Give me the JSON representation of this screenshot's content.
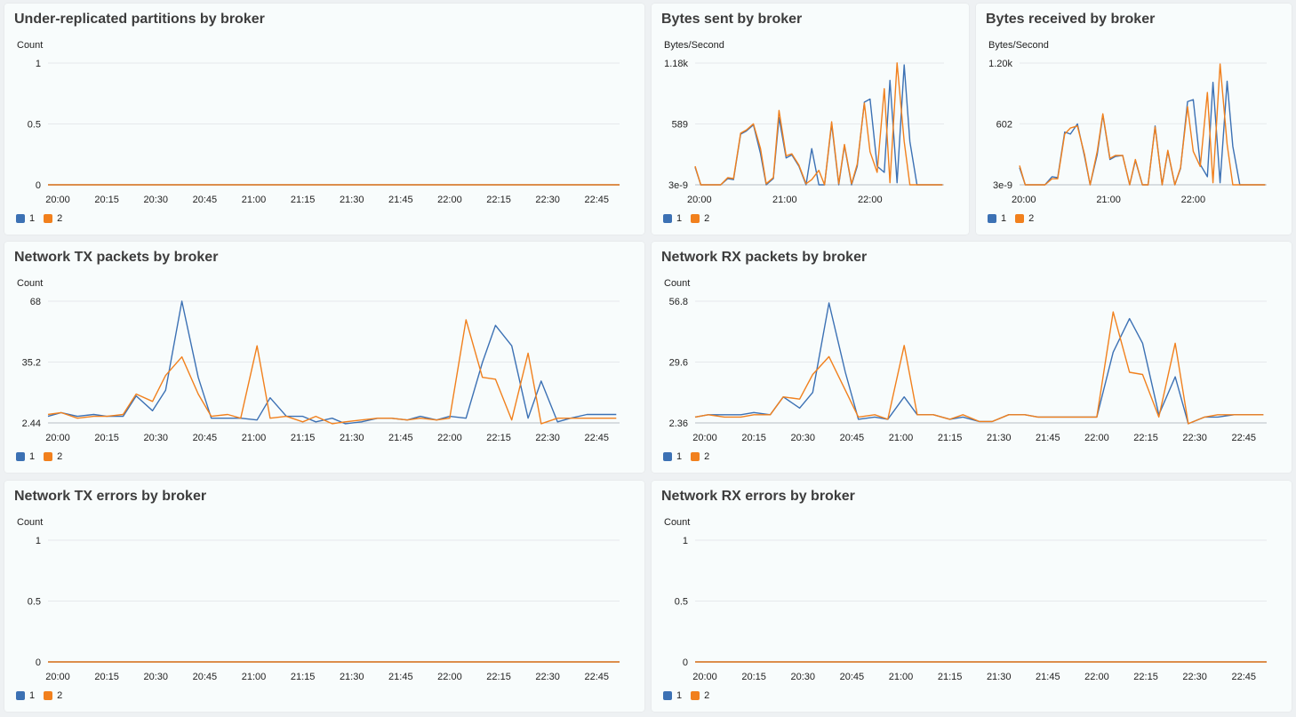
{
  "colors": {
    "series1": "#3c71b4",
    "series2": "#f1801d",
    "grid": "#e6e9ec",
    "axis": "#b9bec4"
  },
  "panels": [
    {
      "title": "Under-replicated partitions by broker",
      "unit": "Count"
    },
    {
      "title": "Bytes sent by broker",
      "unit": "Bytes/Second"
    },
    {
      "title": "Bytes received by broker",
      "unit": "Bytes/Second"
    },
    {
      "title": "Network TX packets by broker",
      "unit": "Count"
    },
    {
      "title": "Network RX packets by broker",
      "unit": "Count"
    },
    {
      "title": "Network TX errors by broker",
      "unit": "Count"
    },
    {
      "title": "Network RX errors by broker",
      "unit": "Count"
    }
  ],
  "chart_data": [
    {
      "type": "line",
      "title": "Under-replicated partitions by broker",
      "ylabel": "Count",
      "x_ticks": [
        "20:00",
        "20:15",
        "20:30",
        "20:45",
        "21:00",
        "21:15",
        "21:30",
        "21:45",
        "22:00",
        "22:15",
        "22:30",
        "22:45"
      ],
      "x_range": [
        "19:57",
        "22:52"
      ],
      "y_ticks": [
        "0",
        "0.5",
        "1"
      ],
      "y_tick_values": [
        0,
        0.5,
        1
      ],
      "ylim": [
        0,
        1
      ],
      "legend_position": "bottom-left",
      "series": [
        {
          "name": "1",
          "x": [
            "19:57",
            "22:52"
          ],
          "values": [
            0,
            0
          ]
        },
        {
          "name": "2",
          "x": [
            "19:57",
            "22:52"
          ],
          "values": [
            0,
            0
          ]
        }
      ]
    },
    {
      "type": "line",
      "title": "Bytes sent by broker",
      "ylabel": "Bytes/Second",
      "x_ticks": [
        "20:00",
        "21:00",
        "22:00"
      ],
      "x_range": [
        "19:57",
        "22:52"
      ],
      "y_ticks": [
        "3e-9",
        "589",
        "1.18k"
      ],
      "y_tick_values": [
        0,
        589,
        1178
      ],
      "ylim": [
        0,
        1178
      ],
      "legend_position": "bottom-left",
      "series": [
        {
          "name": "1",
          "x": [
            "19:57",
            "20:01",
            "20:06",
            "20:11",
            "20:15",
            "20:20",
            "20:24",
            "20:29",
            "20:33",
            "20:38",
            "20:43",
            "20:47",
            "20:52",
            "20:56",
            "21:01",
            "21:05",
            "21:10",
            "21:15",
            "21:19",
            "21:24",
            "21:28",
            "21:33",
            "21:38",
            "21:42",
            "21:47",
            "21:51",
            "21:56",
            "22:00",
            "22:05",
            "22:10",
            "22:14",
            "22:19",
            "22:24",
            "22:28",
            "22:33",
            "22:37",
            "22:42",
            "22:46",
            "22:51"
          ],
          "values": [
            170,
            0,
            0,
            0,
            0,
            60,
            50,
            490,
            520,
            580,
            300,
            0,
            60,
            650,
            260,
            290,
            180,
            0,
            350,
            0,
            0,
            590,
            0,
            380,
            0,
            180,
            800,
            830,
            180,
            120,
            1010,
            20,
            1160,
            420,
            0,
            0,
            0,
            0,
            0
          ]
        },
        {
          "name": "2",
          "x": [
            "19:57",
            "20:01",
            "20:06",
            "20:11",
            "20:15",
            "20:20",
            "20:24",
            "20:29",
            "20:33",
            "20:38",
            "20:43",
            "20:47",
            "20:52",
            "20:56",
            "21:01",
            "21:05",
            "21:10",
            "21:15",
            "21:19",
            "21:24",
            "21:28",
            "21:33",
            "21:38",
            "21:42",
            "21:47",
            "21:51",
            "21:56",
            "22:00",
            "22:05",
            "22:10",
            "22:14",
            "22:19",
            "22:24",
            "22:28",
            "22:33",
            "22:37",
            "22:42",
            "22:46",
            "22:51"
          ],
          "values": [
            180,
            0,
            0,
            0,
            0,
            70,
            60,
            500,
            530,
            590,
            350,
            10,
            70,
            720,
            280,
            300,
            190,
            10,
            50,
            140,
            0,
            610,
            10,
            390,
            10,
            200,
            790,
            320,
            120,
            930,
            20,
            1180,
            420,
            0,
            0,
            0,
            0,
            0,
            0
          ]
        }
      ]
    },
    {
      "type": "line",
      "title": "Bytes received by broker",
      "ylabel": "Bytes/Second",
      "x_ticks": [
        "20:00",
        "21:00",
        "22:00"
      ],
      "x_range": [
        "19:57",
        "22:52"
      ],
      "y_ticks": [
        "3e-9",
        "602",
        "1.20k"
      ],
      "y_tick_values": [
        0,
        602,
        1200
      ],
      "ylim": [
        0,
        1200
      ],
      "legend_position": "bottom-left",
      "series": [
        {
          "name": "1",
          "x": [
            "19:57",
            "20:01",
            "20:06",
            "20:11",
            "20:15",
            "20:20",
            "20:24",
            "20:29",
            "20:33",
            "20:38",
            "20:43",
            "20:47",
            "20:52",
            "20:56",
            "21:01",
            "21:05",
            "21:10",
            "21:15",
            "21:19",
            "21:24",
            "21:28",
            "21:33",
            "21:38",
            "21:42",
            "21:47",
            "21:51",
            "21:56",
            "22:00",
            "22:05",
            "22:10",
            "22:14",
            "22:19",
            "22:24",
            "22:28",
            "22:33",
            "22:37",
            "22:42",
            "22:46",
            "22:51"
          ],
          "values": [
            170,
            0,
            0,
            0,
            0,
            80,
            70,
            520,
            500,
            600,
            280,
            0,
            300,
            690,
            250,
            280,
            290,
            0,
            240,
            0,
            0,
            580,
            0,
            330,
            0,
            160,
            820,
            840,
            200,
            80,
            1010,
            20,
            1020,
            380,
            0,
            0,
            0,
            0,
            0
          ]
        },
        {
          "name": "2",
          "x": [
            "19:57",
            "20:01",
            "20:06",
            "20:11",
            "20:15",
            "20:20",
            "20:24",
            "20:29",
            "20:33",
            "20:38",
            "20:43",
            "20:47",
            "20:52",
            "20:56",
            "21:01",
            "21:05",
            "21:10",
            "21:15",
            "21:19",
            "21:24",
            "21:28",
            "21:33",
            "21:38",
            "21:42",
            "21:47",
            "21:51",
            "21:56",
            "22:00",
            "22:05",
            "22:10",
            "22:14",
            "22:19",
            "22:24",
            "22:28",
            "22:33",
            "22:37",
            "22:42",
            "22:46",
            "22:51"
          ],
          "values": [
            190,
            0,
            0,
            0,
            0,
            60,
            60,
            500,
            560,
            580,
            300,
            0,
            330,
            700,
            260,
            290,
            290,
            0,
            250,
            0,
            0,
            570,
            0,
            340,
            0,
            170,
            770,
            330,
            180,
            910,
            20,
            1190,
            400,
            0,
            0,
            0,
            0,
            0,
            0
          ]
        }
      ]
    },
    {
      "type": "line",
      "title": "Network TX packets by broker",
      "ylabel": "Count",
      "x_ticks": [
        "20:00",
        "20:15",
        "20:30",
        "20:45",
        "21:00",
        "21:15",
        "21:30",
        "21:45",
        "22:00",
        "22:15",
        "22:30",
        "22:45"
      ],
      "x_range": [
        "19:57",
        "22:52"
      ],
      "y_ticks": [
        "2.44",
        "35.2",
        "68"
      ],
      "y_tick_values": [
        2.44,
        35.2,
        68
      ],
      "ylim": [
        2.44,
        68
      ],
      "legend_position": "bottom-left",
      "series": [
        {
          "name": "1",
          "x": [
            "19:57",
            "20:01",
            "20:06",
            "20:11",
            "20:15",
            "20:20",
            "20:24",
            "20:29",
            "20:33",
            "20:38",
            "20:43",
            "20:47",
            "20:52",
            "20:56",
            "21:01",
            "21:05",
            "21:10",
            "21:15",
            "21:19",
            "21:24",
            "21:28",
            "21:33",
            "21:38",
            "21:42",
            "21:47",
            "21:51",
            "21:56",
            "22:00",
            "22:05",
            "22:10",
            "22:14",
            "22:19",
            "22:24",
            "22:28",
            "22:33",
            "22:37",
            "22:42",
            "22:46",
            "22:51"
          ],
          "values": [
            6,
            8,
            6,
            7,
            6,
            6,
            17,
            9,
            20,
            68,
            27,
            5,
            5,
            5,
            4,
            16,
            6,
            6,
            3,
            5,
            2,
            3,
            5,
            5,
            4,
            6,
            4,
            6,
            5,
            35,
            55,
            44,
            5,
            25,
            3,
            5,
            7,
            7,
            7
          ]
        },
        {
          "name": "2",
          "x": [
            "19:57",
            "20:01",
            "20:06",
            "20:11",
            "20:15",
            "20:20",
            "20:24",
            "20:29",
            "20:33",
            "20:38",
            "20:43",
            "20:47",
            "20:52",
            "20:56",
            "21:01",
            "21:05",
            "21:10",
            "21:15",
            "21:19",
            "21:24",
            "21:28",
            "21:33",
            "21:38",
            "21:42",
            "21:47",
            "21:51",
            "21:56",
            "22:00",
            "22:05",
            "22:10",
            "22:14",
            "22:19",
            "22:24",
            "22:28",
            "22:33",
            "22:37",
            "22:42",
            "22:46",
            "22:51"
          ],
          "values": [
            7,
            8,
            5,
            6,
            6,
            7,
            18,
            14,
            28,
            38,
            18,
            6,
            7,
            5,
            44,
            5,
            6,
            3,
            6,
            2,
            3,
            4,
            5,
            5,
            4,
            5,
            4,
            5,
            58,
            27,
            26,
            4,
            40,
            2,
            5,
            5,
            5,
            5,
            5
          ]
        }
      ]
    },
    {
      "type": "line",
      "title": "Network RX packets by broker",
      "ylabel": "Count",
      "x_ticks": [
        "20:00",
        "20:15",
        "20:30",
        "20:45",
        "21:00",
        "21:15",
        "21:30",
        "21:45",
        "22:00",
        "22:15",
        "22:30",
        "22:45"
      ],
      "x_range": [
        "19:57",
        "22:52"
      ],
      "y_ticks": [
        "2.36",
        "29.6",
        "56.8"
      ],
      "y_tick_values": [
        2.36,
        29.6,
        56.8
      ],
      "ylim": [
        2.36,
        56.8
      ],
      "legend_position": "bottom-left",
      "series": [
        {
          "name": "1",
          "x": [
            "19:57",
            "20:01",
            "20:06",
            "20:11",
            "20:15",
            "20:20",
            "20:24",
            "20:29",
            "20:33",
            "20:38",
            "20:43",
            "20:47",
            "20:52",
            "20:56",
            "21:01",
            "21:05",
            "21:10",
            "21:15",
            "21:19",
            "21:24",
            "21:28",
            "21:33",
            "21:38",
            "21:42",
            "21:47",
            "21:51",
            "21:56",
            "22:00",
            "22:05",
            "22:10",
            "22:14",
            "22:19",
            "22:24",
            "22:28",
            "22:33",
            "22:37",
            "22:42",
            "22:46",
            "22:51"
          ],
          "values": [
            5,
            6,
            6,
            6,
            7,
            6,
            14,
            9,
            16,
            56,
            25,
            4,
            5,
            4,
            14,
            6,
            6,
            4,
            5,
            3,
            3,
            6,
            6,
            5,
            5,
            5,
            5,
            5,
            34,
            49,
            38,
            6,
            23,
            2,
            5,
            5,
            6,
            6,
            6
          ]
        },
        {
          "name": "2",
          "x": [
            "19:57",
            "20:01",
            "20:06",
            "20:11",
            "20:15",
            "20:20",
            "20:24",
            "20:29",
            "20:33",
            "20:38",
            "20:43",
            "20:47",
            "20:52",
            "20:56",
            "21:01",
            "21:05",
            "21:10",
            "21:15",
            "21:19",
            "21:24",
            "21:28",
            "21:33",
            "21:38",
            "21:42",
            "21:47",
            "21:51",
            "21:56",
            "22:00",
            "22:05",
            "22:10",
            "22:14",
            "22:19",
            "22:24",
            "22:28",
            "22:33",
            "22:37",
            "22:42",
            "22:46",
            "22:51"
          ],
          "values": [
            5,
            6,
            5,
            5,
            6,
            6,
            14,
            13,
            24,
            32,
            17,
            5,
            6,
            4,
            37,
            6,
            6,
            4,
            6,
            3,
            3,
            6,
            6,
            5,
            5,
            5,
            5,
            5,
            52,
            25,
            24,
            5,
            38,
            2,
            5,
            6,
            6,
            6,
            6
          ]
        }
      ]
    },
    {
      "type": "line",
      "title": "Network TX errors by broker",
      "ylabel": "Count",
      "x_ticks": [
        "20:00",
        "20:15",
        "20:30",
        "20:45",
        "21:00",
        "21:15",
        "21:30",
        "21:45",
        "22:00",
        "22:15",
        "22:30",
        "22:45"
      ],
      "x_range": [
        "19:57",
        "22:52"
      ],
      "y_ticks": [
        "0",
        "0.5",
        "1"
      ],
      "y_tick_values": [
        0,
        0.5,
        1
      ],
      "ylim": [
        0,
        1
      ],
      "legend_position": "bottom-left",
      "series": [
        {
          "name": "1",
          "x": [
            "19:57",
            "22:52"
          ],
          "values": [
            0,
            0
          ]
        },
        {
          "name": "2",
          "x": [
            "19:57",
            "22:52"
          ],
          "values": [
            0,
            0
          ]
        }
      ]
    },
    {
      "type": "line",
      "title": "Network RX errors by broker",
      "ylabel": "Count",
      "x_ticks": [
        "20:00",
        "20:15",
        "20:30",
        "20:45",
        "21:00",
        "21:15",
        "21:30",
        "21:45",
        "22:00",
        "22:15",
        "22:30",
        "22:45"
      ],
      "x_range": [
        "19:57",
        "22:52"
      ],
      "y_ticks": [
        "0",
        "0.5",
        "1"
      ],
      "y_tick_values": [
        0,
        0.5,
        1
      ],
      "ylim": [
        0,
        1
      ],
      "legend_position": "bottom-left",
      "series": [
        {
          "name": "1",
          "x": [
            "19:57",
            "22:52"
          ],
          "values": [
            0,
            0
          ]
        },
        {
          "name": "2",
          "x": [
            "19:57",
            "22:52"
          ],
          "values": [
            0,
            0
          ]
        }
      ]
    }
  ]
}
